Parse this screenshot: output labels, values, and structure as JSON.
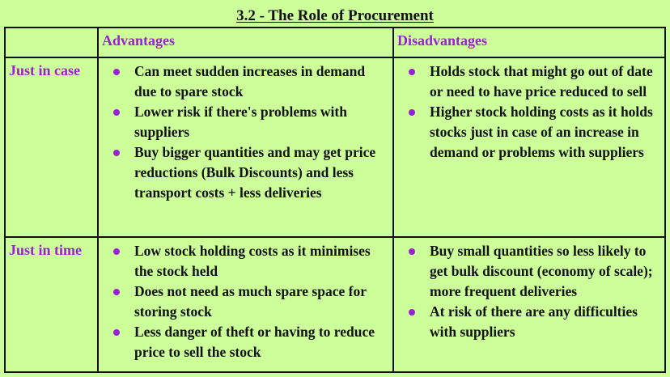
{
  "title": "3.2 - The Role of Procurement",
  "columns": [
    "",
    "Advantages",
    "Disadvantages"
  ],
  "rows": [
    {
      "label": "Just in case",
      "advantages": [
        "Can meet sudden increases in demand due to spare stock",
        "Lower risk if there's problems with suppliers",
        "Buy bigger quantities and may get price reductions (Bulk Discounts) and less transport costs + less deliveries"
      ],
      "disadvantages": [
        "Holds stock that might go out of date or need to have price reduced to sell",
        "Higher stock holding costs as it holds stocks just in case of an increase in demand or problems with suppliers"
      ]
    },
    {
      "label": "Just in time",
      "advantages": [
        "Low stock holding costs as it minimises the stock held",
        "Does not need as much spare space for storing stock",
        "Less danger of theft or having to reduce price to sell the stock"
      ],
      "disadvantages": [
        "Buy small quantities so less likely to get bulk discount (economy of scale); more frequent deliveries",
        "At risk of there are any difficulties with suppliers"
      ]
    }
  ],
  "colors": {
    "background": "#ccff99",
    "accent": "#9b1fd6",
    "text": "#111111"
  }
}
